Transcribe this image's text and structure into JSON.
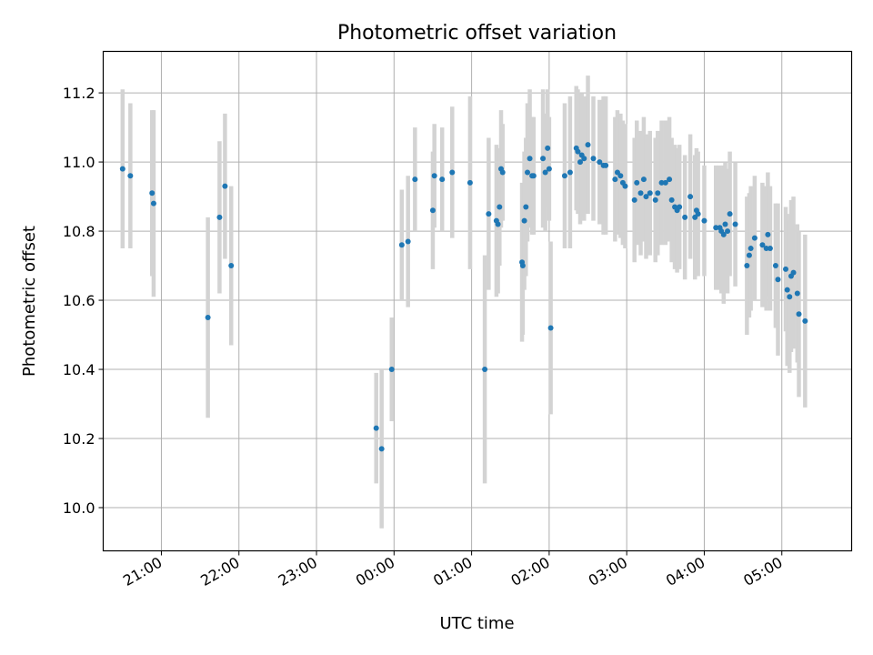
{
  "chart_data": {
    "type": "scatter",
    "title": "Photometric offset variation",
    "xlabel": "UTC time",
    "ylabel": "Photometric offset",
    "x_unit": "hours",
    "xlim": [
      20.25,
      29.9
    ],
    "ylim": [
      9.875,
      11.32
    ],
    "x_ticks": [
      {
        "value": 21,
        "label": "21:00"
      },
      {
        "value": 22,
        "label": "22:00"
      },
      {
        "value": 23,
        "label": "23:00"
      },
      {
        "value": 24,
        "label": "00:00"
      },
      {
        "value": 25,
        "label": "01:00"
      },
      {
        "value": 26,
        "label": "02:00"
      },
      {
        "value": 27,
        "label": "03:00"
      },
      {
        "value": 28,
        "label": "04:00"
      },
      {
        "value": 29,
        "label": "05:00"
      }
    ],
    "y_ticks": [
      {
        "value": 10.0,
        "label": "10.0"
      },
      {
        "value": 10.2,
        "label": "10.2"
      },
      {
        "value": 10.4,
        "label": "10.4"
      },
      {
        "value": 10.6,
        "label": "10.6"
      },
      {
        "value": 10.8,
        "label": "10.8"
      },
      {
        "value": 11.0,
        "label": "11.0"
      },
      {
        "value": 11.2,
        "label": "11.2"
      }
    ],
    "grid": true,
    "colors": {
      "point": "#1f77b4",
      "errorbar": "#d3d3d3",
      "grid": "#b0b0b0"
    },
    "points": [
      {
        "x": 20.5,
        "y": 10.98,
        "err": 0.23
      },
      {
        "x": 20.6,
        "y": 10.96,
        "err": 0.21
      },
      {
        "x": 20.88,
        "y": 10.91,
        "err": 0.24
      },
      {
        "x": 20.9,
        "y": 10.88,
        "err": 0.27
      },
      {
        "x": 21.6,
        "y": 10.55,
        "err": 0.29
      },
      {
        "x": 21.75,
        "y": 10.84,
        "err": 0.22
      },
      {
        "x": 21.82,
        "y": 10.93,
        "err": 0.21
      },
      {
        "x": 21.9,
        "y": 10.7,
        "err": 0.23
      },
      {
        "x": 23.77,
        "y": 10.23,
        "err": 0.16
      },
      {
        "x": 23.84,
        "y": 10.17,
        "err": 0.23
      },
      {
        "x": 23.97,
        "y": 10.4,
        "err": 0.15
      },
      {
        "x": 24.1,
        "y": 10.76,
        "err": 0.16
      },
      {
        "x": 24.18,
        "y": 10.77,
        "err": 0.19
      },
      {
        "x": 24.27,
        "y": 10.95,
        "err": 0.15
      },
      {
        "x": 24.5,
        "y": 10.86,
        "err": 0.17
      },
      {
        "x": 24.52,
        "y": 10.96,
        "err": 0.15
      },
      {
        "x": 24.62,
        "y": 10.95,
        "err": 0.15
      },
      {
        "x": 24.75,
        "y": 10.97,
        "err": 0.19
      },
      {
        "x": 24.98,
        "y": 10.94,
        "err": 0.25
      },
      {
        "x": 25.17,
        "y": 10.4,
        "err": 0.33
      },
      {
        "x": 25.22,
        "y": 10.85,
        "err": 0.22
      },
      {
        "x": 25.32,
        "y": 10.83,
        "err": 0.22
      },
      {
        "x": 25.34,
        "y": 10.82,
        "err": 0.2
      },
      {
        "x": 25.36,
        "y": 10.87,
        "err": 0.17
      },
      {
        "x": 25.38,
        "y": 10.98,
        "err": 0.17
      },
      {
        "x": 25.4,
        "y": 10.97,
        "err": 0.14
      },
      {
        "x": 25.65,
        "y": 10.71,
        "err": 0.23
      },
      {
        "x": 25.66,
        "y": 10.7,
        "err": 0.2
      },
      {
        "x": 25.68,
        "y": 10.83,
        "err": 0.2
      },
      {
        "x": 25.7,
        "y": 10.87,
        "err": 0.2
      },
      {
        "x": 25.72,
        "y": 10.97,
        "err": 0.2
      },
      {
        "x": 25.75,
        "y": 11.01,
        "err": 0.2
      },
      {
        "x": 25.78,
        "y": 10.96,
        "err": 0.17
      },
      {
        "x": 25.8,
        "y": 10.96,
        "err": 0.17
      },
      {
        "x": 25.92,
        "y": 11.01,
        "err": 0.2
      },
      {
        "x": 25.95,
        "y": 10.97,
        "err": 0.17
      },
      {
        "x": 25.98,
        "y": 11.04,
        "err": 0.17
      },
      {
        "x": 26.0,
        "y": 10.98,
        "err": 0.15
      },
      {
        "x": 26.02,
        "y": 10.52,
        "err": 0.25
      },
      {
        "x": 26.2,
        "y": 10.96,
        "err": 0.21
      },
      {
        "x": 26.27,
        "y": 10.97,
        "err": 0.22
      },
      {
        "x": 26.35,
        "y": 11.04,
        "err": 0.18
      },
      {
        "x": 26.37,
        "y": 11.03,
        "err": 0.18
      },
      {
        "x": 26.4,
        "y": 11.0,
        "err": 0.18
      },
      {
        "x": 26.42,
        "y": 11.02,
        "err": 0.18
      },
      {
        "x": 26.45,
        "y": 11.01,
        "err": 0.18
      },
      {
        "x": 26.5,
        "y": 11.05,
        "err": 0.2
      },
      {
        "x": 26.57,
        "y": 11.01,
        "err": 0.18
      },
      {
        "x": 26.65,
        "y": 11.0,
        "err": 0.18
      },
      {
        "x": 26.7,
        "y": 10.99,
        "err": 0.2
      },
      {
        "x": 26.73,
        "y": 10.99,
        "err": 0.2
      },
      {
        "x": 26.85,
        "y": 10.95,
        "err": 0.18
      },
      {
        "x": 26.88,
        "y": 10.97,
        "err": 0.18
      },
      {
        "x": 26.92,
        "y": 10.96,
        "err": 0.18
      },
      {
        "x": 26.95,
        "y": 10.94,
        "err": 0.18
      },
      {
        "x": 26.98,
        "y": 10.93,
        "err": 0.18
      },
      {
        "x": 27.1,
        "y": 10.89,
        "err": 0.18
      },
      {
        "x": 27.13,
        "y": 10.94,
        "err": 0.18
      },
      {
        "x": 27.18,
        "y": 10.91,
        "err": 0.18
      },
      {
        "x": 27.22,
        "y": 10.95,
        "err": 0.18
      },
      {
        "x": 27.25,
        "y": 10.9,
        "err": 0.18
      },
      {
        "x": 27.3,
        "y": 10.91,
        "err": 0.18
      },
      {
        "x": 27.37,
        "y": 10.89,
        "err": 0.18
      },
      {
        "x": 27.4,
        "y": 10.91,
        "err": 0.18
      },
      {
        "x": 27.45,
        "y": 10.94,
        "err": 0.18
      },
      {
        "x": 27.5,
        "y": 10.94,
        "err": 0.18
      },
      {
        "x": 27.55,
        "y": 10.95,
        "err": 0.18
      },
      {
        "x": 27.58,
        "y": 10.89,
        "err": 0.18
      },
      {
        "x": 27.62,
        "y": 10.87,
        "err": 0.18
      },
      {
        "x": 27.65,
        "y": 10.86,
        "err": 0.18
      },
      {
        "x": 27.68,
        "y": 10.87,
        "err": 0.18
      },
      {
        "x": 27.75,
        "y": 10.84,
        "err": 0.18
      },
      {
        "x": 27.82,
        "y": 10.9,
        "err": 0.18
      },
      {
        "x": 27.88,
        "y": 10.84,
        "err": 0.18
      },
      {
        "x": 27.9,
        "y": 10.86,
        "err": 0.18
      },
      {
        "x": 27.92,
        "y": 10.85,
        "err": 0.18
      },
      {
        "x": 28.0,
        "y": 10.83,
        "err": 0.16
      },
      {
        "x": 28.15,
        "y": 10.81,
        "err": 0.18
      },
      {
        "x": 28.2,
        "y": 10.81,
        "err": 0.18
      },
      {
        "x": 28.22,
        "y": 10.8,
        "err": 0.18
      },
      {
        "x": 28.25,
        "y": 10.79,
        "err": 0.2
      },
      {
        "x": 28.27,
        "y": 10.82,
        "err": 0.18
      },
      {
        "x": 28.3,
        "y": 10.8,
        "err": 0.18
      },
      {
        "x": 28.33,
        "y": 10.85,
        "err": 0.18
      },
      {
        "x": 28.4,
        "y": 10.82,
        "err": 0.18
      },
      {
        "x": 28.55,
        "y": 10.7,
        "err": 0.2
      },
      {
        "x": 28.58,
        "y": 10.73,
        "err": 0.18
      },
      {
        "x": 28.6,
        "y": 10.75,
        "err": 0.18
      },
      {
        "x": 28.65,
        "y": 10.78,
        "err": 0.18
      },
      {
        "x": 28.75,
        "y": 10.76,
        "err": 0.18
      },
      {
        "x": 28.8,
        "y": 10.75,
        "err": 0.18
      },
      {
        "x": 28.82,
        "y": 10.79,
        "err": 0.18
      },
      {
        "x": 28.85,
        "y": 10.75,
        "err": 0.18
      },
      {
        "x": 28.92,
        "y": 10.7,
        "err": 0.18
      },
      {
        "x": 28.95,
        "y": 10.66,
        "err": 0.22
      },
      {
        "x": 29.05,
        "y": 10.69,
        "err": 0.18
      },
      {
        "x": 29.07,
        "y": 10.63,
        "err": 0.22
      },
      {
        "x": 29.1,
        "y": 10.61,
        "err": 0.22
      },
      {
        "x": 29.12,
        "y": 10.67,
        "err": 0.22
      },
      {
        "x": 29.15,
        "y": 10.68,
        "err": 0.22
      },
      {
        "x": 29.2,
        "y": 10.62,
        "err": 0.2
      },
      {
        "x": 29.22,
        "y": 10.56,
        "err": 0.24
      },
      {
        "x": 29.3,
        "y": 10.54,
        "err": 0.25
      }
    ]
  }
}
